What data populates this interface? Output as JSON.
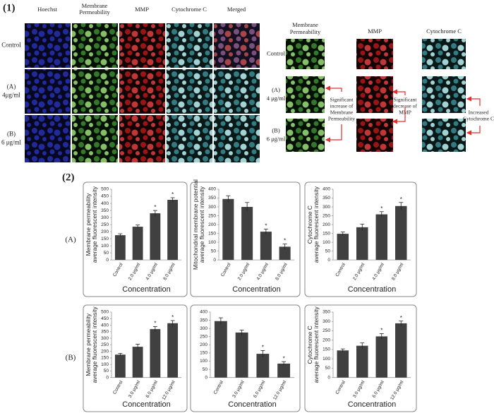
{
  "panel1": {
    "label": "(1)",
    "left": {
      "columns": [
        [
          "Hoechst"
        ],
        [
          "Membrane",
          "Permeability"
        ],
        [
          "MMP"
        ],
        [
          "Cytochrome C"
        ],
        [
          "Merged"
        ]
      ],
      "rows": [
        [
          "Control"
        ],
        [
          "(A)",
          "4μg/ml"
        ],
        [
          "(B)",
          "6 μg/ml"
        ]
      ]
    },
    "right": {
      "columns": [
        [
          "Membrane",
          "Permeability"
        ],
        [
          "MMP"
        ],
        [
          "Cytochrome C"
        ]
      ],
      "rows": [
        [
          "Control"
        ],
        [
          "(A)",
          "4 μg/ml"
        ],
        [
          "(B)",
          "6 μg/ml"
        ]
      ],
      "notes": [
        [
          "Significant",
          "increase of",
          "Membrane",
          "Permeability"
        ],
        [
          "Significant",
          "decrease of",
          "MMP"
        ],
        [
          "Increased",
          "Cytochrome C"
        ]
      ]
    }
  },
  "panel2": {
    "label": "(2)",
    "rows": [
      "(A)",
      "(B)"
    ]
  },
  "chart_data": [
    {
      "type": "bar",
      "ylabel": [
        "Membrane permeability",
        "average fluorescent intensity"
      ],
      "xlabel": "Concentration",
      "categories": [
        "Control",
        "2.0 μg/ml",
        "4.0 μg/ml",
        "8.0 μg/ml"
      ],
      "values": [
        175,
        235,
        330,
        425
      ],
      "errors": [
        10,
        12,
        20,
        15
      ],
      "significance": [
        null,
        null,
        "*",
        "*"
      ],
      "color": "#404040",
      "ylim": [
        0,
        500
      ],
      "yticks": [
        0,
        50,
        100,
        150,
        200,
        250,
        300,
        350,
        400,
        450,
        500
      ]
    },
    {
      "type": "bar",
      "ylabel": [
        "Mitochondrial membrane potential",
        "average fluorescent intensity"
      ],
      "xlabel": "Concentration",
      "categories": [
        "Control",
        "2.0 μg/ml",
        "4.0 μg/ml",
        "8.0 μg/ml"
      ],
      "values": [
        345,
        300,
        160,
        75
      ],
      "errors": [
        18,
        25,
        15,
        15
      ],
      "significance": [
        null,
        null,
        "*",
        "*"
      ],
      "color": "#404040",
      "ylim": [
        0,
        400
      ],
      "yticks": [
        0,
        50,
        100,
        150,
        200,
        250,
        300,
        350,
        400
      ]
    },
    {
      "type": "bar",
      "ylabel": [
        "Cytochrome C",
        "average fluorescent intensity"
      ],
      "xlabel": "Concentration",
      "categories": [
        "Control",
        "2.0 μg/ml",
        "4.0 μg/ml",
        "8.0 μg/ml"
      ],
      "values": [
        148,
        185,
        258,
        305
      ],
      "errors": [
        10,
        18,
        15,
        20
      ],
      "significance": [
        null,
        null,
        "*",
        "*"
      ],
      "color": "#404040",
      "ylim": [
        0,
        400
      ],
      "yticks": [
        0,
        50,
        100,
        150,
        200,
        250,
        300,
        350,
        400
      ]
    },
    {
      "type": "bar",
      "ylabel": [
        "Membrane permeability",
        "average fluorescent intensity"
      ],
      "xlabel": "Concentration",
      "categories": [
        "Control",
        "3.0 μg/ml",
        "6.0 μg/ml",
        "12.0 μg/ml"
      ],
      "values": [
        175,
        235,
        370,
        415
      ],
      "errors": [
        10,
        20,
        20,
        20
      ],
      "significance": [
        null,
        null,
        "*",
        "*"
      ],
      "color": "#404040",
      "ylim": [
        0,
        500
      ],
      "yticks": [
        0,
        50,
        100,
        150,
        200,
        250,
        300,
        350,
        400,
        450,
        500
      ]
    },
    {
      "type": "bar",
      "xlabel": "Concentration",
      "categories": [
        "Control",
        "3.0 μg/ml",
        "6.0 μg/ml",
        "12.0 μg/ml"
      ],
      "values": [
        345,
        275,
        145,
        85
      ],
      "errors": [
        20,
        15,
        20,
        12
      ],
      "significance": [
        null,
        null,
        "*",
        "*"
      ],
      "color": "#404040",
      "ylim": [
        0,
        400
      ],
      "yticks": [
        0,
        50,
        100,
        150,
        200,
        250,
        300,
        350,
        400
      ]
    },
    {
      "type": "bar",
      "ylabel": [
        "Cytochrome C",
        "average fluorescent intensity"
      ],
      "xlabel": "Concentration",
      "categories": [
        "Control",
        "3.0 μg/ml",
        "6.0 μg/ml",
        "12.0 μg/ml"
      ],
      "values": [
        145,
        170,
        220,
        290
      ],
      "errors": [
        8,
        15,
        15,
        12
      ],
      "significance": [
        null,
        null,
        "*",
        "*"
      ],
      "color": "#404040",
      "ylim": [
        0,
        350
      ],
      "yticks": [
        0,
        50,
        100,
        150,
        200,
        250,
        300,
        350
      ]
    }
  ]
}
